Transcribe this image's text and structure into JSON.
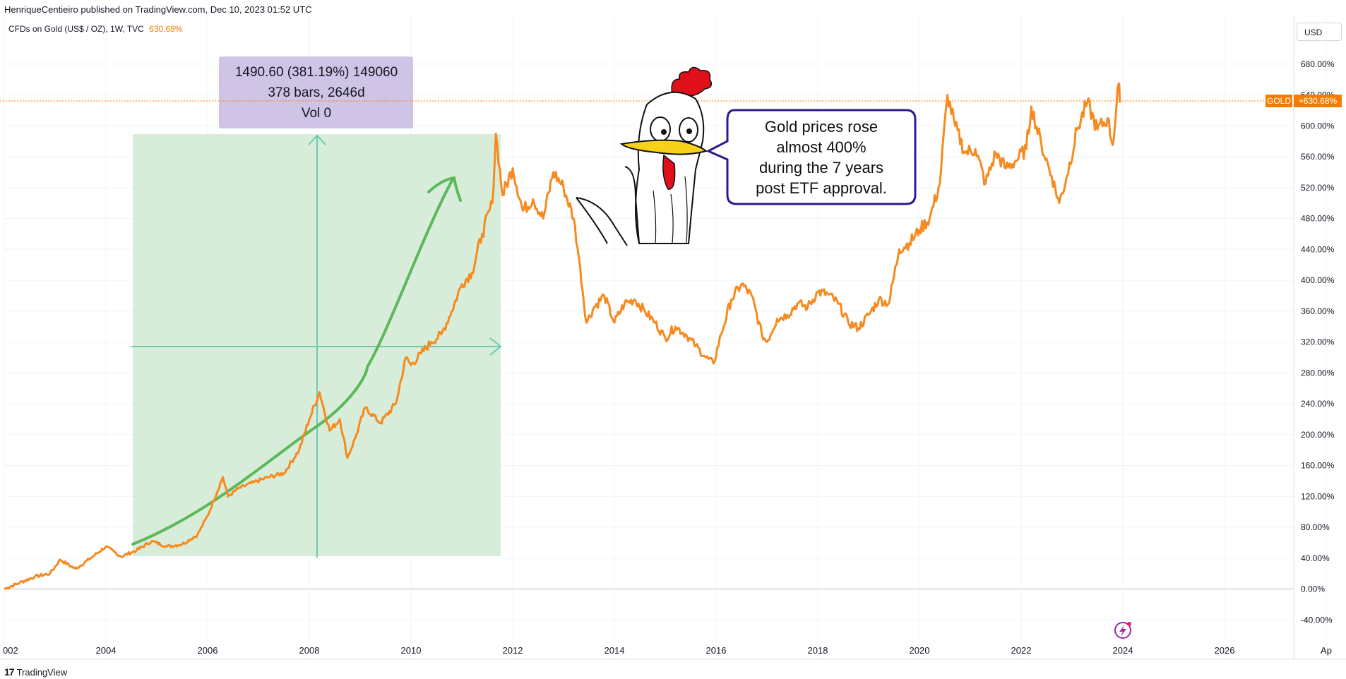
{
  "header": {
    "published_text": "HenriqueCentieiro published on TradingView.com, Dec 10, 2023 01:52 UTC",
    "symbol_text": "CFDs on Gold (US$ / OZ), 1W, TVC",
    "symbol_change": "630.68%",
    "currency_label": "USD"
  },
  "footer": {
    "brand_label": "TradingView"
  },
  "measurement": {
    "line1": "1490.60 (381.19%) 149060",
    "line2": "378 bars, 2646d",
    "line3": "Vol 0"
  },
  "speech_bubble": {
    "lines": [
      "Gold prices rose",
      "almost 400%",
      "during the 7 years",
      "post ETF approval."
    ]
  },
  "price_badge": {
    "symbol": "GOLD",
    "value": "+630.68%"
  },
  "colors": {
    "line": "#f68a1e",
    "measure_fill": "#d8edd9",
    "measure_box": "#cfc4e6",
    "measure_axis": "#6ec9b3",
    "trend_arrow": "#5cb85c",
    "badge": "#f57c00",
    "bubble_border": "#2b1a8c"
  },
  "chart_data": {
    "type": "line",
    "x_tick_labels": [
      "002",
      "2004",
      "2006",
      "2008",
      "2010",
      "2012",
      "2014",
      "2016",
      "2018",
      "2020",
      "2022",
      "2024",
      "2026",
      "Ap"
    ],
    "y_tick_labels": [
      "680.00%",
      "640.00%",
      "600.00%",
      "560.00%",
      "520.00%",
      "480.00%",
      "440.00%",
      "400.00%",
      "360.00%",
      "320.00%",
      "280.00%",
      "240.00%",
      "200.00%",
      "160.00%",
      "120.00%",
      "80.00%",
      "40.00%",
      "0.00%",
      "-40.00%"
    ],
    "ylim": [
      -40,
      680
    ],
    "xlim": [
      2002.0,
      2026.5
    ],
    "grid": true,
    "series": [
      {
        "values": [
          [
            2002.0,
            0
          ],
          [
            2002.3,
            8
          ],
          [
            2002.6,
            16
          ],
          [
            2002.9,
            20
          ],
          [
            2003.1,
            38
          ],
          [
            2003.4,
            26
          ],
          [
            2003.7,
            40
          ],
          [
            2004.0,
            55
          ],
          [
            2004.3,
            42
          ],
          [
            2004.6,
            50
          ],
          [
            2004.9,
            62
          ],
          [
            2005.2,
            55
          ],
          [
            2005.5,
            58
          ],
          [
            2005.8,
            70
          ],
          [
            2006.0,
            95
          ],
          [
            2006.3,
            145
          ],
          [
            2006.4,
            120
          ],
          [
            2006.6,
            130
          ],
          [
            2006.9,
            138
          ],
          [
            2007.2,
            145
          ],
          [
            2007.5,
            150
          ],
          [
            2007.8,
            180
          ],
          [
            2008.0,
            220
          ],
          [
            2008.2,
            255
          ],
          [
            2008.4,
            205
          ],
          [
            2008.6,
            220
          ],
          [
            2008.75,
            170
          ],
          [
            2008.9,
            195
          ],
          [
            2009.1,
            235
          ],
          [
            2009.4,
            215
          ],
          [
            2009.7,
            240
          ],
          [
            2009.9,
            300
          ],
          [
            2010.0,
            290
          ],
          [
            2010.2,
            305
          ],
          [
            2010.4,
            320
          ],
          [
            2010.6,
            330
          ],
          [
            2010.8,
            360
          ],
          [
            2011.0,
            395
          ],
          [
            2011.2,
            410
          ],
          [
            2011.4,
            460
          ],
          [
            2011.6,
            500
          ],
          [
            2011.67,
            590
          ],
          [
            2011.8,
            510
          ],
          [
            2012.0,
            545
          ],
          [
            2012.2,
            490
          ],
          [
            2012.4,
            505
          ],
          [
            2012.6,
            480
          ],
          [
            2012.8,
            540
          ],
          [
            2013.0,
            520
          ],
          [
            2013.2,
            480
          ],
          [
            2013.3,
            430
          ],
          [
            2013.45,
            345
          ],
          [
            2013.6,
            365
          ],
          [
            2013.8,
            380
          ],
          [
            2014.0,
            345
          ],
          [
            2014.2,
            370
          ],
          [
            2014.4,
            375
          ],
          [
            2014.6,
            360
          ],
          [
            2014.8,
            345
          ],
          [
            2015.0,
            325
          ],
          [
            2015.2,
            340
          ],
          [
            2015.4,
            330
          ],
          [
            2015.6,
            315
          ],
          [
            2015.8,
            300
          ],
          [
            2015.95,
            292
          ],
          [
            2016.1,
            330
          ],
          [
            2016.3,
            375
          ],
          [
            2016.5,
            395
          ],
          [
            2016.7,
            380
          ],
          [
            2016.9,
            330
          ],
          [
            2017.0,
            320
          ],
          [
            2017.2,
            350
          ],
          [
            2017.4,
            355
          ],
          [
            2017.6,
            370
          ],
          [
            2017.8,
            365
          ],
          [
            2018.0,
            385
          ],
          [
            2018.2,
            382
          ],
          [
            2018.4,
            370
          ],
          [
            2018.6,
            345
          ],
          [
            2018.8,
            338
          ],
          [
            2019.0,
            355
          ],
          [
            2019.2,
            375
          ],
          [
            2019.4,
            370
          ],
          [
            2019.6,
            440
          ],
          [
            2019.8,
            448
          ],
          [
            2020.0,
            465
          ],
          [
            2020.2,
            480
          ],
          [
            2020.4,
            525
          ],
          [
            2020.55,
            640
          ],
          [
            2020.7,
            600
          ],
          [
            2020.9,
            565
          ],
          [
            2021.1,
            570
          ],
          [
            2021.3,
            525
          ],
          [
            2021.5,
            565
          ],
          [
            2021.7,
            545
          ],
          [
            2021.9,
            555
          ],
          [
            2022.1,
            570
          ],
          [
            2022.2,
            625
          ],
          [
            2022.4,
            575
          ],
          [
            2022.6,
            535
          ],
          [
            2022.75,
            500
          ],
          [
            2022.9,
            535
          ],
          [
            2023.1,
            595
          ],
          [
            2023.3,
            630
          ],
          [
            2023.5,
            595
          ],
          [
            2023.7,
            610
          ],
          [
            2023.8,
            575
          ],
          [
            2023.92,
            655
          ],
          [
            2023.94,
            630
          ]
        ]
      }
    ]
  }
}
